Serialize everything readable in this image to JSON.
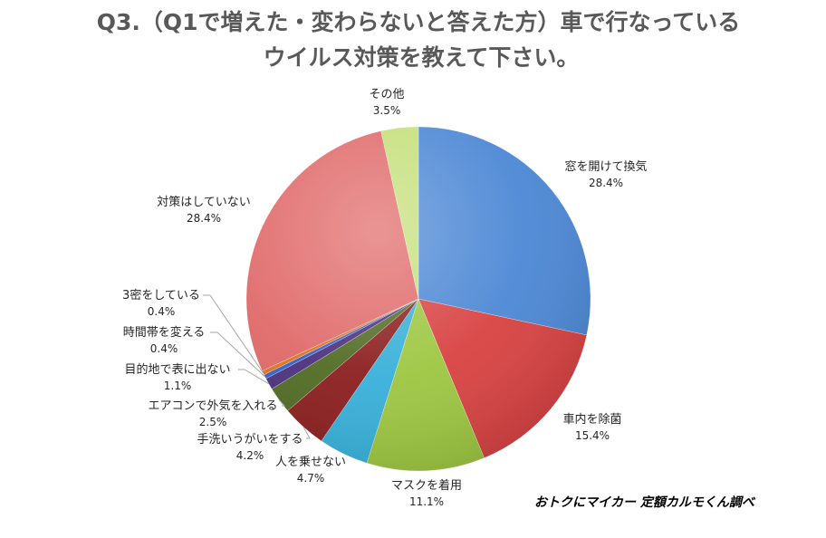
{
  "source_note": "おトクにマイカー 定額カルモくん調べ",
  "chart_data": {
    "type": "pie",
    "title": [
      "Q3.（Q1で増えた・変わらないと答えた方）車で行なっている",
      "ウイルス対策を教えて下さい。"
    ],
    "slices": [
      {
        "label": "窓を開けて換気",
        "value": 28.4,
        "value_label": "28.4%",
        "color": "#4a86d4"
      },
      {
        "label": "車内を除菌",
        "value": 15.4,
        "value_label": "15.4%",
        "color": "#d84040"
      },
      {
        "label": "マスクを着用",
        "value": 11.1,
        "value_label": "11.1%",
        "color": "#9cc63f"
      },
      {
        "label": "人を乗せない",
        "value": 4.7,
        "value_label": "4.7%",
        "color": "#36afd9"
      },
      {
        "label": "手洗いうがいをする",
        "value": 4.2,
        "value_label": "4.2%",
        "color": "#8a1c1c"
      },
      {
        "label": "エアコンで外気を入れる",
        "value": 2.5,
        "value_label": "2.5%",
        "color": "#4f6a22"
      },
      {
        "label": "目的地で表に出ない",
        "value": 1.1,
        "value_label": "1.1%",
        "color": "#4b2e7e"
      },
      {
        "label": "時間帯を変える",
        "value": 0.4,
        "value_label": "0.4%",
        "color": "#2f63c4"
      },
      {
        "label": "3密をしている",
        "value": 0.4,
        "value_label": "0.4%",
        "color": "#e0721e"
      },
      {
        "label": "対策はしていない",
        "value": 28.4,
        "value_label": "28.4%",
        "color": "#e06868"
      },
      {
        "label": "その他",
        "value": 3.5,
        "value_label": "3.5%",
        "color": "#c4df79"
      }
    ]
  }
}
